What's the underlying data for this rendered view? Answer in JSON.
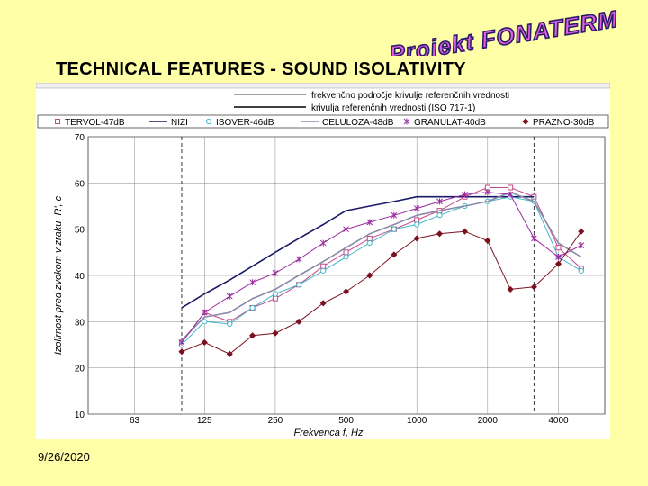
{
  "logo": {
    "text": "Projekt FONATERM"
  },
  "slide": {
    "title": "TECHNICAL FEATURES - SOUND ISOLATIVITY",
    "date": "9/26/2020"
  },
  "chart_data": {
    "type": "line",
    "ylabel": "Izolirnost pred zvokom v zraku, R', с",
    "xlabel": "Frekvenca f, Hz",
    "ylim": [
      10,
      70
    ],
    "yticks": [
      10,
      20,
      30,
      40,
      50,
      60,
      70
    ],
    "xticks": [
      63,
      125,
      250,
      500,
      1000,
      2000,
      4000
    ],
    "xlim": [
      40,
      6300
    ],
    "x_scale": "log",
    "grid": true,
    "header_notes": [
      "frekvenčno področje krivulje referenčnih vrednosti",
      "krivulja referenčnih vrednosti (ISO 717-1)"
    ],
    "legend_position": "top",
    "series": [
      {
        "name": "TERVOL-47dB",
        "color": "#c04a8a",
        "marker": "square",
        "x": [
          100,
          125,
          160,
          200,
          250,
          315,
          400,
          500,
          630,
          800,
          1000,
          1250,
          1600,
          2000,
          2500,
          3150,
          4000,
          5000
        ],
        "y": [
          25.5,
          32,
          30,
          33,
          35,
          38,
          42,
          45,
          48,
          50,
          52,
          54,
          57,
          59,
          59,
          57,
          46,
          41.5
        ]
      },
      {
        "name": "NIZI",
        "color": "#1a1a66",
        "marker": "none",
        "x": [
          100,
          125,
          160,
          200,
          250,
          315,
          400,
          500,
          630,
          800,
          1000,
          1250,
          1600,
          2000,
          2500,
          3150,
          4000,
          5000
        ],
        "y": [
          33,
          36,
          39,
          42,
          45,
          48,
          51,
          54,
          55,
          56,
          57,
          57,
          57,
          57,
          57,
          57,
          null,
          null
        ]
      },
      {
        "name": "ISOVER-46dB",
        "color": "#44b8c8",
        "marker": "circle",
        "x": [
          100,
          125,
          160,
          200,
          250,
          315,
          400,
          500,
          630,
          800,
          1000,
          1250,
          1600,
          2000,
          2500,
          3150,
          4000,
          5000
        ],
        "y": [
          25,
          30,
          29.5,
          33,
          36,
          38,
          41,
          44,
          47,
          50,
          51,
          53,
          55,
          56,
          57,
          56,
          44,
          41
        ]
      },
      {
        "name": "CELULOZA-48dB",
        "color": "#8a8aa8",
        "marker": "none",
        "x": [
          100,
          125,
          160,
          200,
          250,
          315,
          400,
          500,
          630,
          800,
          1000,
          1250,
          1600,
          2000,
          2500,
          3150,
          4000,
          5000
        ],
        "y": [
          26,
          31,
          32,
          35,
          37,
          40,
          43,
          46,
          49,
          51,
          53,
          54,
          55,
          56,
          58,
          56,
          47,
          44
        ]
      },
      {
        "name": "GRANULAT-40dB",
        "color": "#9a2aa0",
        "marker": "star",
        "x": [
          100,
          125,
          160,
          200,
          250,
          315,
          400,
          500,
          630,
          800,
          1000,
          1250,
          1600,
          2000,
          2500,
          3150,
          4000,
          5000
        ],
        "y": [
          25.5,
          32,
          35.5,
          38.5,
          40.5,
          43.5,
          47,
          50,
          51.5,
          53,
          54.5,
          56,
          57.5,
          58,
          57.5,
          48,
          44,
          46.5
        ]
      },
      {
        "name": "PRAZNO-30dB",
        "color": "#7a1020",
        "marker": "diamond",
        "x": [
          100,
          125,
          160,
          200,
          250,
          315,
          400,
          500,
          630,
          800,
          1000,
          1250,
          1600,
          2000,
          2500,
          3150,
          4000,
          5000
        ],
        "y": [
          23.5,
          25.5,
          23,
          27,
          27.5,
          30,
          34,
          36.5,
          40,
          44.5,
          48,
          49,
          49.5,
          47.5,
          37,
          37.5,
          42.5,
          49.5
        ]
      }
    ]
  }
}
